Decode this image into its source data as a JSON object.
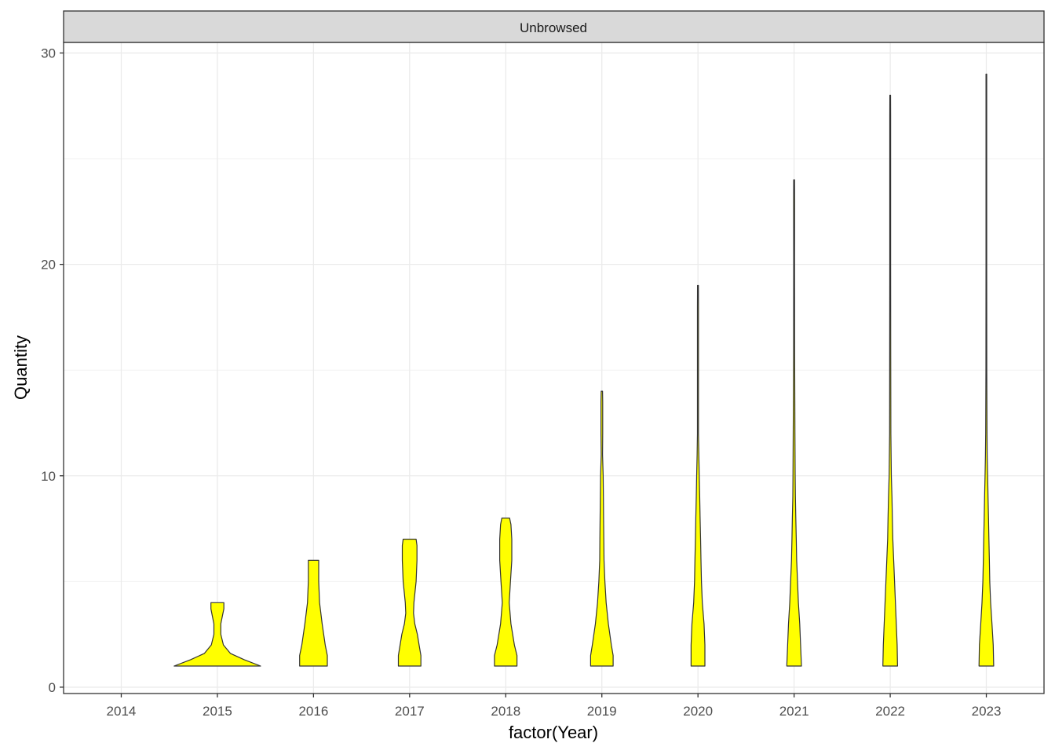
{
  "chart_data": {
    "type": "violin",
    "facet_label": "Unbrowsed",
    "xlabel": "factor(Year)",
    "ylabel": "Quantity",
    "categories": [
      "2014",
      "2015",
      "2016",
      "2017",
      "2018",
      "2019",
      "2020",
      "2021",
      "2022",
      "2023"
    ],
    "ylim": [
      -0.3,
      30.5
    ],
    "yticks": [
      0,
      10,
      20,
      30
    ],
    "grid": true,
    "fill_color": "#ffff00",
    "outline_color": "#333333",
    "violins": [
      {
        "year": "2015",
        "min": 1,
        "max": 4,
        "profile": [
          [
            1.0,
            1.0
          ],
          [
            1.3,
            0.62
          ],
          [
            1.6,
            0.3
          ],
          [
            2.0,
            0.14
          ],
          [
            2.5,
            0.08
          ],
          [
            3.0,
            0.08
          ],
          [
            3.4,
            0.12
          ],
          [
            3.7,
            0.15
          ],
          [
            4.0,
            0.15
          ]
        ]
      },
      {
        "year": "2016",
        "min": 1,
        "max": 6,
        "profile": [
          [
            1.0,
            0.32
          ],
          [
            1.5,
            0.32
          ],
          [
            2.0,
            0.27
          ],
          [
            3.0,
            0.2
          ],
          [
            4.0,
            0.14
          ],
          [
            5.0,
            0.12
          ],
          [
            5.6,
            0.12
          ],
          [
            6.0,
            0.12
          ]
        ]
      },
      {
        "year": "2017",
        "min": 1,
        "max": 7,
        "profile": [
          [
            1.0,
            0.26
          ],
          [
            1.5,
            0.26
          ],
          [
            2.0,
            0.22
          ],
          [
            2.5,
            0.18
          ],
          [
            3.0,
            0.12
          ],
          [
            3.5,
            0.09
          ],
          [
            4.0,
            0.1
          ],
          [
            5.0,
            0.15
          ],
          [
            6.0,
            0.17
          ],
          [
            6.7,
            0.17
          ],
          [
            7.0,
            0.15
          ]
        ]
      },
      {
        "year": "2018",
        "min": 1,
        "max": 8,
        "profile": [
          [
            1.0,
            0.26
          ],
          [
            1.5,
            0.26
          ],
          [
            2.0,
            0.2
          ],
          [
            3.0,
            0.12
          ],
          [
            4.0,
            0.08
          ],
          [
            5.0,
            0.11
          ],
          [
            6.0,
            0.14
          ],
          [
            7.0,
            0.14
          ],
          [
            7.7,
            0.12
          ],
          [
            8.0,
            0.09
          ]
        ]
      },
      {
        "year": "2019",
        "min": 1,
        "max": 14,
        "profile": [
          [
            1.0,
            0.26
          ],
          [
            1.5,
            0.26
          ],
          [
            2.0,
            0.22
          ],
          [
            3.0,
            0.15
          ],
          [
            4.0,
            0.1
          ],
          [
            5.0,
            0.07
          ],
          [
            6.0,
            0.05
          ],
          [
            7.0,
            0.045
          ],
          [
            8.0,
            0.04
          ],
          [
            9.0,
            0.035
          ],
          [
            10.0,
            0.03
          ],
          [
            11.0,
            0.015
          ],
          [
            12.0,
            0.02
          ],
          [
            13.0,
            0.02
          ],
          [
            13.5,
            0.02
          ],
          [
            14.0,
            0.015
          ]
        ]
      },
      {
        "year": "2020",
        "min": 1,
        "max": 19,
        "profile": [
          [
            1.0,
            0.16
          ],
          [
            2.0,
            0.16
          ],
          [
            3.0,
            0.14
          ],
          [
            4.0,
            0.1
          ],
          [
            5.0,
            0.08
          ],
          [
            6.0,
            0.07
          ],
          [
            7.0,
            0.06
          ],
          [
            8.0,
            0.05
          ],
          [
            9.0,
            0.04
          ],
          [
            10.0,
            0.03
          ],
          [
            11.0,
            0.02
          ],
          [
            12.0,
            0.012
          ],
          [
            14.0,
            0.012
          ],
          [
            16.0,
            0.012
          ],
          [
            18.0,
            0.012
          ],
          [
            19.0,
            0.01
          ]
        ]
      },
      {
        "year": "2021",
        "min": 1,
        "max": 24,
        "profile": [
          [
            1.0,
            0.17
          ],
          [
            2.0,
            0.15
          ],
          [
            3.0,
            0.13
          ],
          [
            4.0,
            0.1
          ],
          [
            5.0,
            0.08
          ],
          [
            6.0,
            0.06
          ],
          [
            7.0,
            0.05
          ],
          [
            8.0,
            0.04
          ],
          [
            9.0,
            0.03
          ],
          [
            10.0,
            0.025
          ],
          [
            12.0,
            0.02
          ],
          [
            14.0,
            0.015
          ],
          [
            16.0,
            0.012
          ],
          [
            20.0,
            0.01
          ],
          [
            23.0,
            0.012
          ],
          [
            24.0,
            0.01
          ]
        ]
      },
      {
        "year": "2022",
        "min": 1,
        "max": 28,
        "profile": [
          [
            1.0,
            0.17
          ],
          [
            2.0,
            0.16
          ],
          [
            3.0,
            0.14
          ],
          [
            4.0,
            0.12
          ],
          [
            5.0,
            0.1
          ],
          [
            6.0,
            0.08
          ],
          [
            7.0,
            0.06
          ],
          [
            8.0,
            0.05
          ],
          [
            9.0,
            0.04
          ],
          [
            10.0,
            0.025
          ],
          [
            12.0,
            0.015
          ],
          [
            16.0,
            0.012
          ],
          [
            20.0,
            0.01
          ],
          [
            24.0,
            0.01
          ],
          [
            27.0,
            0.01
          ],
          [
            28.0,
            0.008
          ]
        ]
      },
      {
        "year": "2023",
        "min": 1,
        "max": 29,
        "profile": [
          [
            1.0,
            0.17
          ],
          [
            2.0,
            0.16
          ],
          [
            3.0,
            0.13
          ],
          [
            4.0,
            0.1
          ],
          [
            5.0,
            0.08
          ],
          [
            6.0,
            0.07
          ],
          [
            7.0,
            0.06
          ],
          [
            8.0,
            0.05
          ],
          [
            9.0,
            0.04
          ],
          [
            10.0,
            0.03
          ],
          [
            11.0,
            0.02
          ],
          [
            12.0,
            0.015
          ],
          [
            15.0,
            0.01
          ],
          [
            20.0,
            0.008
          ],
          [
            25.0,
            0.008
          ],
          [
            29.0,
            0.008
          ]
        ]
      }
    ]
  }
}
